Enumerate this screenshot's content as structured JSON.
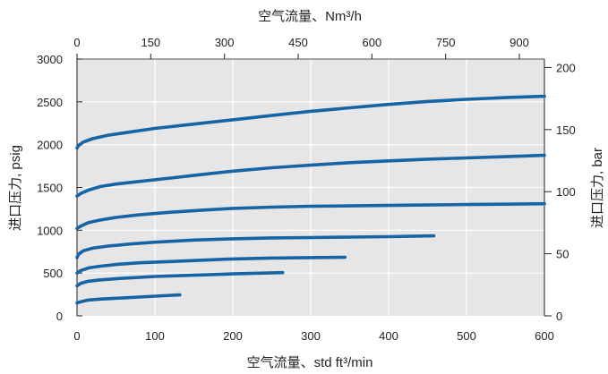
{
  "chart_data": {
    "type": "line",
    "xlabel_bottom": "空气流量、std ft³/min",
    "xlabel_top": "空气流量、Nm³/h",
    "ylabel_left": "进口压力, psig",
    "ylabel_right": "进口压力, bar",
    "xlim": [
      0,
      600
    ],
    "ylim": [
      0,
      3000
    ],
    "x2lim": [
      0,
      951
    ],
    "y2lim": [
      0,
      206.8
    ],
    "xticks": [
      0,
      100,
      200,
      300,
      400,
      500,
      600
    ],
    "yticks": [
      0,
      500,
      1000,
      1500,
      2000,
      2500,
      3000
    ],
    "x2ticks": [
      0,
      150,
      300,
      450,
      600,
      750,
      900
    ],
    "y2ticks": [
      0,
      50,
      100,
      150,
      200
    ],
    "grid": true,
    "colors": {
      "plot_bg": "#e6e6e6",
      "grid": "#ffffff",
      "line": "#1764a4",
      "axis": "#222222"
    },
    "series": [
      {
        "x": [
          0,
          2,
          8,
          20,
          40,
          70,
          100,
          150,
          200,
          250,
          300,
          350,
          400,
          450,
          500,
          550,
          600
        ],
        "y": [
          1960,
          1990,
          2030,
          2070,
          2110,
          2150,
          2190,
          2240,
          2290,
          2340,
          2390,
          2430,
          2470,
          2505,
          2530,
          2550,
          2565
        ]
      },
      {
        "x": [
          0,
          5,
          15,
          30,
          50,
          80,
          120,
          160,
          200,
          250,
          300,
          350,
          400,
          450,
          500,
          550,
          600
        ],
        "y": [
          1400,
          1430,
          1470,
          1510,
          1540,
          1570,
          1610,
          1650,
          1690,
          1730,
          1760,
          1790,
          1810,
          1830,
          1845,
          1860,
          1875
        ]
      },
      {
        "x": [
          0,
          5,
          15,
          30,
          50,
          80,
          120,
          160,
          200,
          250,
          300,
          350,
          400,
          450,
          500,
          550,
          600
        ],
        "y": [
          1020,
          1050,
          1090,
          1120,
          1150,
          1180,
          1210,
          1235,
          1255,
          1270,
          1280,
          1285,
          1290,
          1295,
          1300,
          1305,
          1310
        ]
      },
      {
        "x": [
          0,
          2,
          8,
          20,
          40,
          70,
          100,
          150,
          200,
          250,
          300,
          350,
          400,
          458
        ],
        "y": [
          680,
          720,
          760,
          790,
          815,
          840,
          860,
          885,
          900,
          910,
          915,
          920,
          925,
          935
        ]
      },
      {
        "x": [
          0,
          5,
          15,
          30,
          50,
          80,
          120,
          160,
          200,
          250,
          300,
          344
        ],
        "y": [
          500,
          530,
          560,
          580,
          600,
          620,
          635,
          650,
          665,
          675,
          680,
          685
        ]
      },
      {
        "x": [
          0,
          5,
          15,
          30,
          60,
          100,
          150,
          200,
          264
        ],
        "y": [
          350,
          380,
          405,
          420,
          440,
          460,
          475,
          490,
          505
        ]
      },
      {
        "x": [
          0,
          5,
          15,
          30,
          60,
          100,
          132
        ],
        "y": [
          150,
          165,
          185,
          195,
          210,
          230,
          245
        ]
      }
    ]
  }
}
